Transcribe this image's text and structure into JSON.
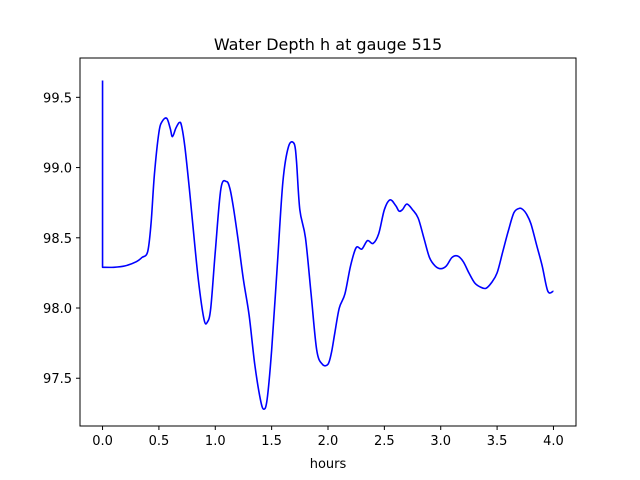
{
  "chart_data": {
    "type": "line",
    "title": "Water Depth h at gauge 515",
    "xlabel": "hours",
    "ylabel": "",
    "xlim": [
      -0.2,
      4.2
    ],
    "ylim": [
      97.16,
      99.78
    ],
    "xticks": [
      0.0,
      0.5,
      1.0,
      1.5,
      2.0,
      2.5,
      3.0,
      3.5,
      4.0
    ],
    "xtick_labels": [
      "0.0",
      "0.5",
      "1.0",
      "1.5",
      "2.0",
      "2.5",
      "3.0",
      "3.5",
      "4.0"
    ],
    "yticks": [
      97.5,
      98.0,
      98.5,
      99.0,
      99.5
    ],
    "ytick_labels": [
      "97.5",
      "98.0",
      "98.5",
      "99.0",
      "99.5"
    ],
    "grid": false,
    "series": [
      {
        "name": "",
        "color": "#0000ff",
        "x": [
          0.0,
          0.0,
          0.1,
          0.2,
          0.3,
          0.35,
          0.4,
          0.43,
          0.46,
          0.5,
          0.53,
          0.57,
          0.6,
          0.62,
          0.65,
          0.68,
          0.7,
          0.73,
          0.77,
          0.8,
          0.85,
          0.9,
          0.93,
          0.96,
          1.0,
          1.05,
          1.1,
          1.13,
          1.16,
          1.2,
          1.25,
          1.3,
          1.35,
          1.4,
          1.43,
          1.46,
          1.5,
          1.55,
          1.6,
          1.65,
          1.7,
          1.72,
          1.75,
          1.8,
          1.85,
          1.9,
          1.95,
          2.0,
          2.03,
          2.06,
          2.1,
          2.15,
          2.2,
          2.25,
          2.3,
          2.35,
          2.4,
          2.45,
          2.5,
          2.55,
          2.6,
          2.63,
          2.66,
          2.7,
          2.75,
          2.8,
          2.85,
          2.9,
          2.95,
          3.0,
          3.05,
          3.1,
          3.15,
          3.2,
          3.25,
          3.3,
          3.35,
          3.4,
          3.45,
          3.5,
          3.55,
          3.6,
          3.65,
          3.7,
          3.73,
          3.76,
          3.8,
          3.85,
          3.9,
          3.95,
          4.0
        ],
        "y": [
          99.62,
          98.29,
          98.29,
          98.3,
          98.33,
          98.36,
          98.4,
          98.6,
          98.95,
          99.25,
          99.33,
          99.35,
          99.28,
          99.22,
          99.28,
          99.32,
          99.3,
          99.15,
          98.85,
          98.6,
          98.2,
          97.92,
          97.9,
          98.0,
          98.4,
          98.85,
          98.9,
          98.85,
          98.72,
          98.5,
          98.2,
          97.95,
          97.6,
          97.35,
          97.28,
          97.35,
          97.7,
          98.3,
          98.9,
          99.15,
          99.17,
          99.05,
          98.7,
          98.5,
          98.1,
          97.7,
          97.6,
          97.6,
          97.68,
          97.82,
          98.0,
          98.1,
          98.3,
          98.43,
          98.42,
          98.48,
          98.46,
          98.53,
          98.7,
          98.77,
          98.73,
          98.69,
          98.7,
          98.74,
          98.7,
          98.64,
          98.5,
          98.36,
          98.3,
          98.28,
          98.3,
          98.36,
          98.37,
          98.33,
          98.25,
          98.18,
          98.15,
          98.14,
          98.18,
          98.25,
          98.4,
          98.55,
          98.68,
          98.71,
          98.7,
          98.67,
          98.6,
          98.45,
          98.3,
          98.12,
          98.12
        ]
      }
    ]
  }
}
